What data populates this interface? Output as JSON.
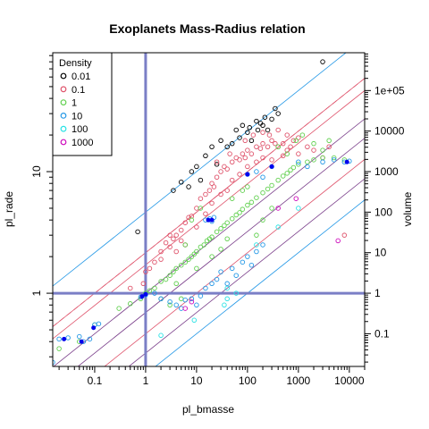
{
  "chart_data": {
    "type": "scatter",
    "title": "Exoplanets Mass-Radius relation",
    "xlabel": "pl_bmasse",
    "ylabel": "pl_rade",
    "y2label": "volume",
    "x_scale": "log",
    "y_scale": "log",
    "y2_scale": "log",
    "xlim": [
      0.015,
      20000
    ],
    "ylim": [
      0.25,
      95
    ],
    "y2lim": [
      0.0156,
      857375
    ],
    "x_ticks": [
      {
        "value": 0.1,
        "label": "0.1"
      },
      {
        "value": 1,
        "label": "1"
      },
      {
        "value": 10,
        "label": "10"
      },
      {
        "value": 100,
        "label": "100"
      },
      {
        "value": 1000,
        "label": "1000"
      },
      {
        "value": 10000,
        "label": "10000"
      }
    ],
    "y_ticks": [
      {
        "value": 1,
        "label": "1"
      },
      {
        "value": 10,
        "label": "10"
      }
    ],
    "y2_ticks": [
      {
        "value": 0.1,
        "label": "0.1"
      },
      {
        "value": 1,
        "label": "1"
      },
      {
        "value": 10,
        "label": "10"
      },
      {
        "value": 100,
        "label": "100"
      },
      {
        "value": 1000,
        "label": "1000"
      },
      {
        "value": 10000,
        "label": "10000"
      },
      {
        "value": 100000,
        "label": "1e+05"
      }
    ],
    "reference_lines": {
      "x": 1,
      "y": 1,
      "color": "#7b7fc6"
    },
    "legend": {
      "title": "Density",
      "position": "top-left",
      "entries": [
        {
          "label": "0.01",
          "density": 0.01,
          "color": "#000000"
        },
        {
          "label": "0.1",
          "density": 0.1,
          "color": "#df536b"
        },
        {
          "label": "1",
          "density": 1,
          "color": "#61d04f"
        },
        {
          "label": "10",
          "density": 10,
          "color": "#2297e6"
        },
        {
          "label": "100",
          "density": 100,
          "color": "#28e2e5"
        },
        {
          "label": "1000",
          "density": 1000,
          "color": "#cd0bbc"
        }
      ]
    },
    "density_lines": [
      {
        "density": 0.01,
        "color": "#2297e6"
      },
      {
        "density": 0.1,
        "color": "#df536b"
      },
      {
        "density": 0.1,
        "color": "#df536b",
        "dashed": true
      },
      {
        "density": 0.2,
        "color": "#df536b"
      },
      {
        "density": 1,
        "color": "#7a3e8a"
      },
      {
        "density": 3,
        "color": "#7a3e8a"
      },
      {
        "density": 10,
        "color": "#df536b"
      },
      {
        "density": 30,
        "color": "#7a3e8a"
      },
      {
        "density": 100,
        "color": "#2297e6"
      }
    ],
    "series": [
      {
        "name": "0.01",
        "color": "#000000",
        "points": [
          [
            0.7,
            3.2
          ],
          [
            3.5,
            7
          ],
          [
            5,
            8.2
          ],
          [
            7,
            7.5
          ],
          [
            8,
            10
          ],
          [
            10,
            11
          ],
          [
            12,
            8.5
          ],
          [
            15,
            13.5
          ],
          [
            20,
            16
          ],
          [
            25,
            11.5
          ],
          [
            30,
            18
          ],
          [
            40,
            16
          ],
          [
            50,
            17
          ],
          [
            60,
            22
          ],
          [
            70,
            19
          ],
          [
            80,
            24
          ],
          [
            100,
            21
          ],
          [
            110,
            23
          ],
          [
            120,
            18
          ],
          [
            150,
            26
          ],
          [
            160,
            22
          ],
          [
            180,
            25
          ],
          [
            200,
            24
          ],
          [
            220,
            28
          ],
          [
            250,
            22
          ],
          [
            300,
            27
          ],
          [
            350,
            33
          ],
          [
            400,
            30
          ],
          [
            3000,
            80
          ]
        ]
      },
      {
        "name": "0.1",
        "color": "#df536b",
        "points": [
          [
            0.5,
            1.1
          ],
          [
            0.9,
            1.2
          ],
          [
            1.2,
            1.6
          ],
          [
            1.5,
            1.8
          ],
          [
            2,
            2.2
          ],
          [
            2.5,
            2.6
          ],
          [
            3,
            2.4
          ],
          [
            3.5,
            2.8
          ],
          [
            4,
            3
          ],
          [
            5,
            3.3
          ],
          [
            5,
            2.7
          ],
          [
            6,
            3.8
          ],
          [
            7,
            4.2
          ],
          [
            8,
            4.3
          ],
          [
            10,
            5
          ],
          [
            12,
            6
          ],
          [
            15,
            6.5
          ],
          [
            18,
            7
          ],
          [
            20,
            8
          ],
          [
            22,
            7.5
          ],
          [
            25,
            9
          ],
          [
            30,
            10
          ],
          [
            35,
            11
          ],
          [
            40,
            10.5
          ],
          [
            50,
            12
          ],
          [
            60,
            13
          ],
          [
            70,
            12.5
          ],
          [
            80,
            14
          ],
          [
            90,
            13
          ],
          [
            100,
            15
          ],
          [
            120,
            14
          ],
          [
            150,
            16
          ],
          [
            180,
            15.5
          ],
          [
            200,
            17
          ],
          [
            250,
            16
          ],
          [
            300,
            18
          ],
          [
            350,
            17
          ],
          [
            400,
            16
          ],
          [
            500,
            17
          ],
          [
            600,
            15
          ],
          [
            700,
            16
          ],
          [
            800,
            18
          ],
          [
            1000,
            14
          ],
          [
            1500,
            16
          ],
          [
            2000,
            15
          ],
          [
            3000,
            13
          ],
          [
            4000,
            16
          ],
          [
            8000,
            3
          ],
          [
            1,
            1.5
          ],
          [
            2,
            1.9
          ],
          [
            3,
            3
          ],
          [
            4,
            2.2
          ],
          [
            6,
            2.5
          ],
          [
            10,
            3.5
          ],
          [
            15,
            4.5
          ],
          [
            20,
            5.5
          ],
          [
            30,
            6.5
          ],
          [
            40,
            7
          ],
          [
            50,
            8.5
          ],
          [
            70,
            9.5
          ],
          [
            100,
            11
          ],
          [
            150,
            12
          ],
          [
            200,
            13
          ],
          [
            300,
            12.5
          ],
          [
            500,
            13.5
          ],
          [
            25,
            12
          ],
          [
            45,
            14
          ],
          [
            90,
            18
          ],
          [
            130,
            20
          ],
          [
            200,
            21
          ],
          [
            270,
            20
          ],
          [
            400,
            22
          ],
          [
            600,
            20
          ],
          [
            1000,
            19
          ]
        ]
      },
      {
        "name": "1",
        "color": "#61d04f",
        "points": [
          [
            0.02,
            0.35
          ],
          [
            0.05,
            0.4
          ],
          [
            0.1,
            0.55
          ],
          [
            0.3,
            0.75
          ],
          [
            0.5,
            0.82
          ],
          [
            0.8,
            0.9
          ],
          [
            1,
            1
          ],
          [
            1.2,
            1.05
          ],
          [
            1.5,
            1.1
          ],
          [
            2,
            1.25
          ],
          [
            2.5,
            1.3
          ],
          [
            3,
            1.4
          ],
          [
            3.5,
            1.5
          ],
          [
            4,
            1.6
          ],
          [
            5,
            1.7
          ],
          [
            6,
            1.8
          ],
          [
            7,
            1.9
          ],
          [
            8,
            2
          ],
          [
            9,
            2.1
          ],
          [
            10,
            2.2
          ],
          [
            12,
            2.4
          ],
          [
            14,
            2.5
          ],
          [
            16,
            2.7
          ],
          [
            18,
            2.8
          ],
          [
            20,
            2.9
          ],
          [
            25,
            3.2
          ],
          [
            30,
            3.4
          ],
          [
            35,
            3.6
          ],
          [
            40,
            3.8
          ],
          [
            50,
            4.1
          ],
          [
            60,
            4.4
          ],
          [
            70,
            4.6
          ],
          [
            80,
            4.9
          ],
          [
            100,
            5.3
          ],
          [
            120,
            5.6
          ],
          [
            150,
            6.1
          ],
          [
            200,
            6.7
          ],
          [
            250,
            7.2
          ],
          [
            300,
            7.7
          ],
          [
            400,
            8.5
          ],
          [
            500,
            9.2
          ],
          [
            600,
            9.7
          ],
          [
            700,
            10.3
          ],
          [
            800,
            10.8
          ],
          [
            1000,
            11.5
          ],
          [
            1500,
            12
          ],
          [
            2000,
            12.5
          ],
          [
            3000,
            13
          ],
          [
            5000,
            13
          ],
          [
            8000,
            12.5
          ],
          [
            3,
            0.8
          ],
          [
            5,
            0.9
          ],
          [
            6,
            2.5
          ],
          [
            10,
            1.6
          ],
          [
            20,
            2
          ],
          [
            30,
            2.3
          ],
          [
            40,
            2.8
          ],
          [
            50,
            6
          ],
          [
            80,
            7
          ],
          [
            100,
            7.5
          ],
          [
            150,
            3
          ],
          [
            200,
            4
          ],
          [
            300,
            5
          ],
          [
            400,
            16
          ],
          [
            600,
            14
          ],
          [
            900,
            18
          ],
          [
            1200,
            20
          ],
          [
            2000,
            17
          ],
          [
            3000,
            15
          ],
          [
            4000,
            18
          ],
          [
            8,
            4
          ],
          [
            12,
            5
          ],
          [
            4,
            1.2
          ],
          [
            2,
            0.9
          ]
        ]
      },
      {
        "name": "10",
        "color": "#2297e6",
        "points": [
          [
            0.015,
            0.27
          ],
          [
            0.02,
            0.42
          ],
          [
            0.03,
            0.43
          ],
          [
            0.05,
            0.44
          ],
          [
            0.06,
            0.4
          ],
          [
            0.08,
            0.42
          ],
          [
            0.1,
            0.55
          ],
          [
            0.12,
            0.56
          ],
          [
            0.8,
            0.93
          ],
          [
            1,
            0.97
          ],
          [
            1.5,
            1
          ],
          [
            2,
            0.9
          ],
          [
            3,
            0.85
          ],
          [
            4,
            0.8
          ],
          [
            5,
            0.75
          ],
          [
            6,
            0.88
          ],
          [
            8,
            0.9
          ],
          [
            10,
            0.8
          ],
          [
            12,
            0.95
          ],
          [
            15,
            1.1
          ],
          [
            20,
            1.2
          ],
          [
            25,
            1.3
          ],
          [
            30,
            1.5
          ],
          [
            40,
            1.2
          ],
          [
            50,
            1.6
          ],
          [
            60,
            1.4
          ],
          [
            80,
            1.8
          ],
          [
            100,
            2
          ],
          [
            120,
            1.7
          ],
          [
            150,
            2.2
          ],
          [
            200,
            2.5
          ],
          [
            15,
            4
          ],
          [
            18,
            4.1
          ],
          [
            20,
            3.9
          ],
          [
            22,
            4.2
          ],
          [
            100,
            9.5
          ],
          [
            150,
            10
          ],
          [
            200,
            9
          ],
          [
            300,
            11
          ],
          [
            1000,
            12
          ],
          [
            1500,
            11
          ],
          [
            3000,
            12
          ],
          [
            5000,
            12.5
          ],
          [
            8000,
            12
          ],
          [
            10000,
            12.2
          ]
        ]
      },
      {
        "name": "100",
        "color": "#28e2e5",
        "points": [
          [
            2,
            0.45
          ],
          [
            9,
            0.6
          ],
          [
            35,
            0.8
          ],
          [
            40,
            0.9
          ],
          [
            150,
            2.5
          ],
          [
            400,
            3.5
          ],
          [
            1000,
            5
          ],
          [
            40,
            1.1
          ],
          [
            60,
            1
          ]
        ]
      },
      {
        "name": "1000",
        "color": "#cd0bbc",
        "points": [
          [
            6,
            0.75
          ],
          [
            8,
            0.85
          ],
          [
            6000,
            2.7
          ],
          [
            400,
            5
          ],
          [
            900,
            6
          ]
        ]
      }
    ],
    "highlight": {
      "color": "#0000ee",
      "points": [
        [
          0.025,
          0.42
        ],
        [
          0.055,
          0.4
        ],
        [
          0.095,
          0.52
        ],
        [
          0.85,
          0.94
        ],
        [
          1,
          0.98
        ],
        [
          17,
          4
        ],
        [
          20,
          4
        ],
        [
          100,
          9.5
        ],
        [
          300,
          11
        ],
        [
          9000,
          12
        ]
      ]
    }
  }
}
